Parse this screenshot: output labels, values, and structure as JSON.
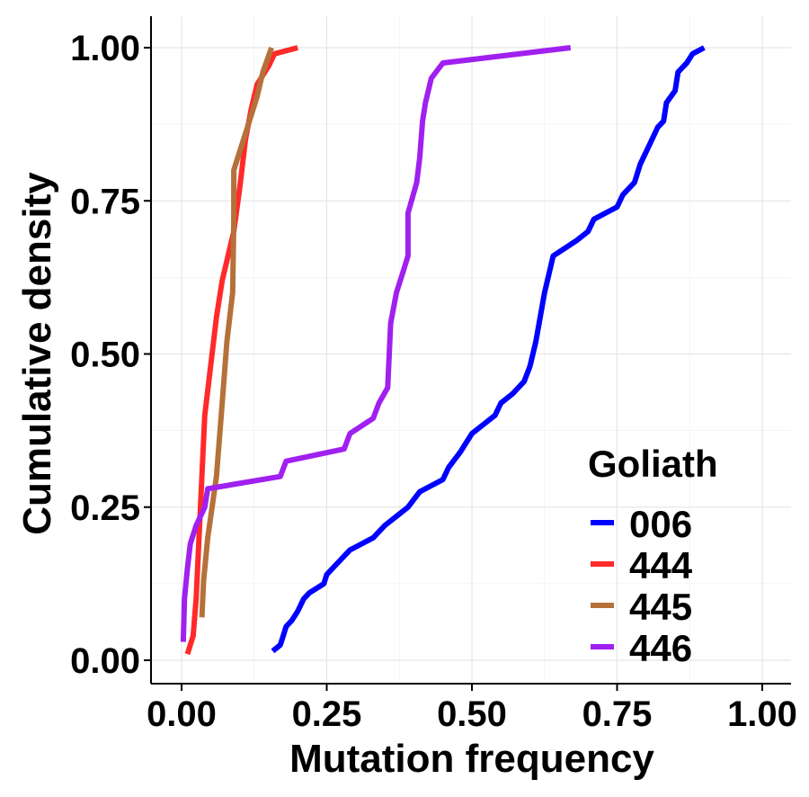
{
  "chart_data": {
    "type": "line",
    "xlabel": "Mutation frequency",
    "ylabel": "Cumulative density",
    "xlim": [
      0,
      1
    ],
    "ylim": [
      0,
      1
    ],
    "x_ticks": [
      "0.00",
      "0.25",
      "0.50",
      "0.75",
      "1.00"
    ],
    "y_ticks": [
      "0.00",
      "0.25",
      "0.50",
      "0.75",
      "1.00"
    ],
    "grid": true,
    "legend": {
      "title": "Goliath",
      "position": "bottom-right"
    },
    "series": [
      {
        "name": "006",
        "color": "#0000ff",
        "points": [
          [
            0.157,
            0.015
          ],
          [
            0.17,
            0.025
          ],
          [
            0.175,
            0.04
          ],
          [
            0.18,
            0.055
          ],
          [
            0.19,
            0.065
          ],
          [
            0.2,
            0.08
          ],
          [
            0.21,
            0.1
          ],
          [
            0.22,
            0.11
          ],
          [
            0.245,
            0.125
          ],
          [
            0.25,
            0.14
          ],
          [
            0.27,
            0.16
          ],
          [
            0.29,
            0.18
          ],
          [
            0.31,
            0.19
          ],
          [
            0.33,
            0.2
          ],
          [
            0.35,
            0.22
          ],
          [
            0.37,
            0.235
          ],
          [
            0.39,
            0.25
          ],
          [
            0.41,
            0.275
          ],
          [
            0.43,
            0.285
          ],
          [
            0.45,
            0.295
          ],
          [
            0.46,
            0.315
          ],
          [
            0.48,
            0.34
          ],
          [
            0.5,
            0.37
          ],
          [
            0.52,
            0.385
          ],
          [
            0.54,
            0.4
          ],
          [
            0.55,
            0.42
          ],
          [
            0.57,
            0.435
          ],
          [
            0.59,
            0.455
          ],
          [
            0.6,
            0.48
          ],
          [
            0.61,
            0.52
          ],
          [
            0.625,
            0.6
          ],
          [
            0.64,
            0.66
          ],
          [
            0.68,
            0.685
          ],
          [
            0.7,
            0.7
          ],
          [
            0.71,
            0.72
          ],
          [
            0.73,
            0.73
          ],
          [
            0.75,
            0.74
          ],
          [
            0.76,
            0.76
          ],
          [
            0.78,
            0.78
          ],
          [
            0.79,
            0.81
          ],
          [
            0.8,
            0.83
          ],
          [
            0.81,
            0.85
          ],
          [
            0.82,
            0.87
          ],
          [
            0.83,
            0.88
          ],
          [
            0.835,
            0.91
          ],
          [
            0.85,
            0.93
          ],
          [
            0.855,
            0.96
          ],
          [
            0.87,
            0.975
          ],
          [
            0.88,
            0.99
          ],
          [
            0.9,
            1.0
          ]
        ]
      },
      {
        "name": "444",
        "color": "#ff2a2a",
        "points": [
          [
            0.01,
            0.01
          ],
          [
            0.02,
            0.04
          ],
          [
            0.025,
            0.1
          ],
          [
            0.03,
            0.2
          ],
          [
            0.035,
            0.3
          ],
          [
            0.04,
            0.4
          ],
          [
            0.05,
            0.48
          ],
          [
            0.06,
            0.56
          ],
          [
            0.07,
            0.62
          ],
          [
            0.09,
            0.7
          ],
          [
            0.1,
            0.77
          ],
          [
            0.11,
            0.85
          ],
          [
            0.12,
            0.9
          ],
          [
            0.13,
            0.94
          ],
          [
            0.15,
            0.97
          ],
          [
            0.16,
            0.99
          ],
          [
            0.2,
            1.0
          ]
        ]
      },
      {
        "name": "445",
        "color": "#b5713a",
        "points": [
          [
            0.035,
            0.07
          ],
          [
            0.038,
            0.13
          ],
          [
            0.045,
            0.2
          ],
          [
            0.06,
            0.3
          ],
          [
            0.07,
            0.42
          ],
          [
            0.078,
            0.52
          ],
          [
            0.088,
            0.6
          ],
          [
            0.09,
            0.72
          ],
          [
            0.09,
            0.8
          ],
          [
            0.11,
            0.86
          ],
          [
            0.13,
            0.92
          ],
          [
            0.14,
            0.96
          ],
          [
            0.155,
            1.0
          ]
        ]
      },
      {
        "name": "446",
        "color": "#a020f0",
        "points": [
          [
            0.003,
            0.03
          ],
          [
            0.005,
            0.1
          ],
          [
            0.01,
            0.15
          ],
          [
            0.015,
            0.19
          ],
          [
            0.025,
            0.22
          ],
          [
            0.04,
            0.25
          ],
          [
            0.045,
            0.28
          ],
          [
            0.17,
            0.3
          ],
          [
            0.18,
            0.325
          ],
          [
            0.28,
            0.345
          ],
          [
            0.29,
            0.37
          ],
          [
            0.33,
            0.395
          ],
          [
            0.34,
            0.42
          ],
          [
            0.355,
            0.445
          ],
          [
            0.36,
            0.55
          ],
          [
            0.37,
            0.6
          ],
          [
            0.38,
            0.63
          ],
          [
            0.39,
            0.66
          ],
          [
            0.39,
            0.73
          ],
          [
            0.405,
            0.78
          ],
          [
            0.41,
            0.82
          ],
          [
            0.415,
            0.88
          ],
          [
            0.42,
            0.91
          ],
          [
            0.43,
            0.95
          ],
          [
            0.45,
            0.975
          ],
          [
            0.67,
            1.0
          ]
        ]
      }
    ]
  }
}
